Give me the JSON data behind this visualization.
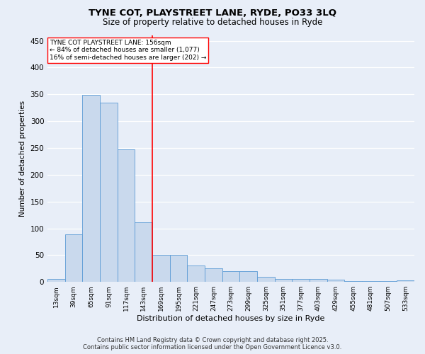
{
  "title": "TYNE COT, PLAYSTREET LANE, RYDE, PO33 3LQ",
  "subtitle": "Size of property relative to detached houses in Ryde",
  "xlabel": "Distribution of detached houses by size in Ryde",
  "ylabel": "Number of detached properties",
  "categories": [
    "13sqm",
    "39sqm",
    "65sqm",
    "91sqm",
    "117sqm",
    "143sqm",
    "169sqm",
    "195sqm",
    "221sqm",
    "247sqm",
    "273sqm",
    "299sqm",
    "325sqm",
    "351sqm",
    "377sqm",
    "403sqm",
    "429sqm",
    "455sqm",
    "481sqm",
    "507sqm",
    "533sqm"
  ],
  "values": [
    6,
    89,
    349,
    335,
    247,
    111,
    50,
    50,
    31,
    25,
    20,
    20,
    9,
    5,
    5,
    5,
    4,
    1,
    1,
    2,
    3
  ],
  "bar_color": "#c9d9ed",
  "bar_edge_color": "#5b9bd5",
  "background_color": "#e8eef8",
  "grid_color": "#ffffff",
  "red_line_x": 5.5,
  "annotation_title": "TYNE COT PLAYSTREET LANE: 156sqm",
  "annotation_line1": "← 84% of detached houses are smaller (1,077)",
  "annotation_line2": "16% of semi-detached houses are larger (202) →",
  "footer_line1": "Contains HM Land Registry data © Crown copyright and database right 2025.",
  "footer_line2": "Contains public sector information licensed under the Open Government Licence v3.0.",
  "ylim": [
    0,
    460
  ],
  "yticks": [
    0,
    50,
    100,
    150,
    200,
    250,
    300,
    350,
    400,
    450
  ]
}
